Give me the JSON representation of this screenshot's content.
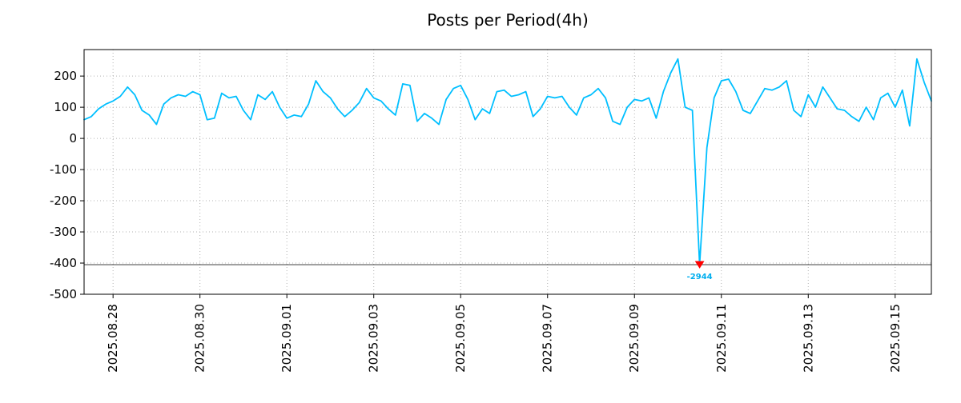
{
  "chart_data": {
    "type": "line",
    "title": "Posts per Period(4h)",
    "period": "4h",
    "line_color": "#00bfff",
    "grid_color": "#b3b3b3",
    "background_color": "#ffffff",
    "ylim": [
      -500,
      285
    ],
    "y_ticks": [
      -500,
      -400,
      -300,
      -200,
      -100,
      0,
      100,
      200
    ],
    "clip_value": -405,
    "x_tick_labels": [
      "2025.08.28",
      "2025.08.30",
      "2025.09.01",
      "2025.09.03",
      "2025.09.05",
      "2025.09.07",
      "2025.09.09",
      "2025.09.11",
      "2025.09.13",
      "2025.09.15"
    ],
    "x_tick_indices": [
      4,
      16,
      28,
      40,
      52,
      64,
      76,
      88,
      100,
      112
    ],
    "values": [
      60,
      70,
      95,
      110,
      120,
      135,
      165,
      140,
      90,
      75,
      45,
      110,
      130,
      140,
      135,
      150,
      140,
      60,
      65,
      145,
      130,
      135,
      90,
      60,
      140,
      125,
      150,
      100,
      65,
      75,
      70,
      110,
      185,
      150,
      130,
      95,
      70,
      90,
      115,
      160,
      130,
      120,
      95,
      75,
      175,
      170,
      55,
      80,
      65,
      45,
      125,
      160,
      170,
      125,
      60,
      95,
      80,
      150,
      155,
      135,
      140,
      150,
      70,
      95,
      135,
      130,
      135,
      100,
      75,
      130,
      140,
      160,
      130,
      55,
      45,
      100,
      125,
      120,
      130,
      65,
      150,
      210,
      255,
      100,
      90,
      -2944,
      -30,
      130,
      185,
      190,
      150,
      90,
      80,
      120,
      160,
      155,
      165,
      185,
      90,
      70,
      140,
      100,
      165,
      130,
      95,
      90,
      70,
      55,
      100,
      60,
      130,
      145,
      100,
      155,
      40,
      255,
      180,
      120
    ],
    "annotation": {
      "index": 85,
      "value": -2944,
      "label": "-2944",
      "marker": "triangle-down",
      "marker_color": "#ff0000",
      "text_color": "#00aeef"
    },
    "grid": true,
    "legend": "none"
  }
}
